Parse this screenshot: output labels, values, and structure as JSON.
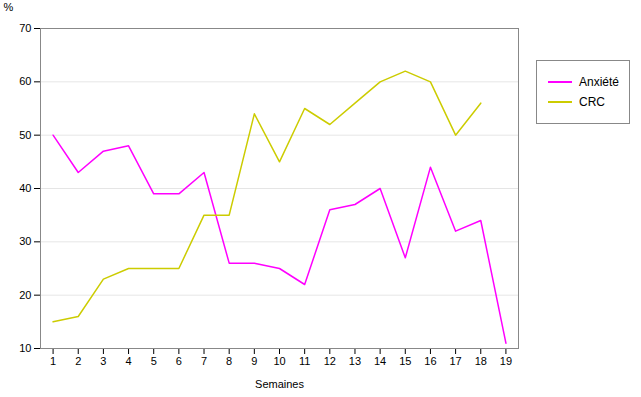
{
  "chart_data": {
    "type": "line",
    "x": [
      1,
      2,
      3,
      4,
      5,
      6,
      7,
      8,
      9,
      10,
      11,
      12,
      13,
      14,
      15,
      16,
      17,
      18,
      19
    ],
    "series": [
      {
        "name": "Anxiété",
        "color": "#FF00FF",
        "values": [
          50,
          43,
          47,
          48,
          39,
          39,
          43,
          26,
          26,
          25,
          22,
          36,
          37,
          40,
          27,
          44,
          32,
          34,
          11
        ]
      },
      {
        "name": "CRC",
        "color": "#CCCC00",
        "values": [
          15,
          16,
          23,
          25,
          25,
          25,
          35,
          35,
          54,
          45,
          55,
          52,
          56,
          60,
          62,
          60,
          50,
          56,
          null
        ]
      }
    ],
    "xlabel": "Semaines",
    "ylabel": "%",
    "xlim": [
      0.5,
      19.5
    ],
    "xticks": [
      1,
      2,
      3,
      4,
      5,
      6,
      7,
      8,
      9,
      10,
      11,
      12,
      13,
      14,
      15,
      16,
      17,
      18,
      19
    ],
    "ylim": [
      10,
      70
    ],
    "yticks": [
      10,
      20,
      30,
      40,
      50,
      60,
      70
    ],
    "grid": true,
    "legend": "right"
  }
}
